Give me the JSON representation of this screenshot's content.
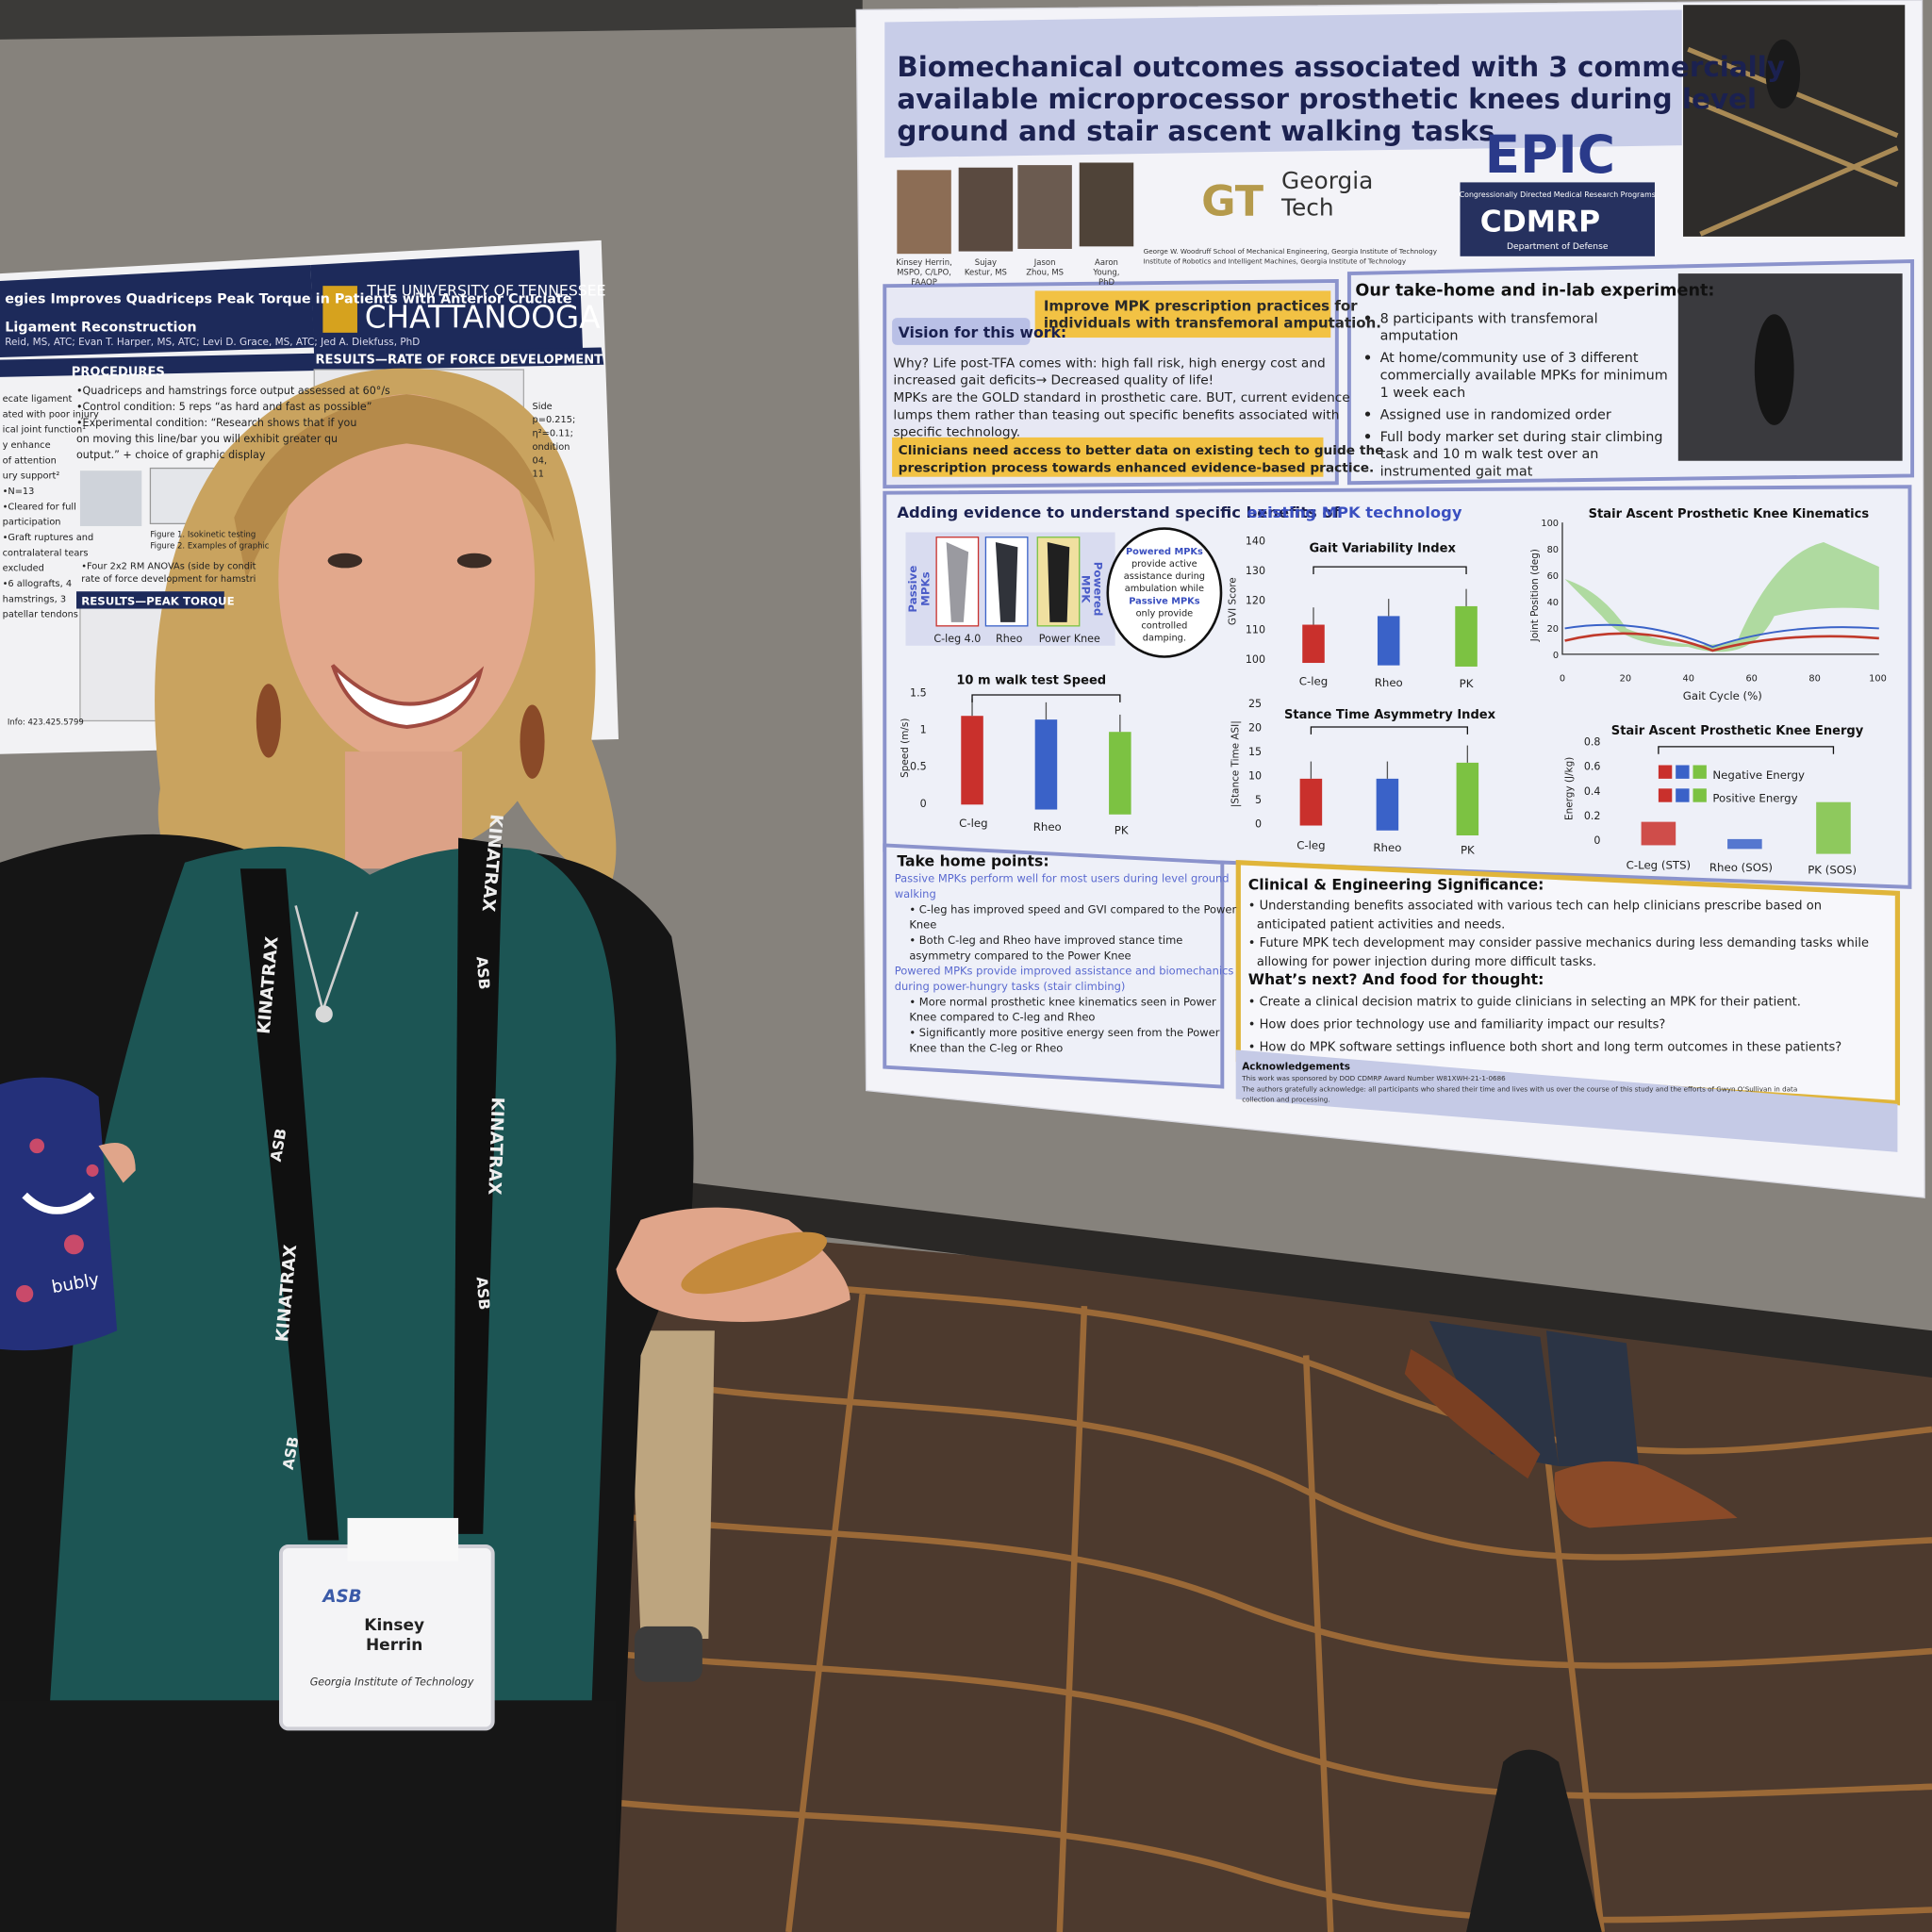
{
  "left_poster": {
    "title": [
      "egies Improves Quadriceps Peak Torque in Patients with Anterior Cruciate",
      "Ligament Reconstruction"
    ],
    "authors": "Reid, MS, ATC; Evan T. Harper, MS, ATC; Levi D. Grace, MS, ATC; Jed A. Diekfuss, PhD",
    "university": [
      "THE UNIVERSITY OF TENNESSEE",
      "CHATTANOOGA"
    ],
    "sections": [
      "PROCEDURES",
      "RESULTS—RATE OF FORCE DEVELOPMENT",
      "RESULTS—PEAK TORQUE"
    ],
    "procedures": [
      "•Quadriceps and hamstrings force output assessed at 60°/s",
      "•Control condition: 5 reps “as hard and fast as possible”",
      "•Experimental condition: “Research shows that if you",
      "on moving this line/bar you will exhibit greater qu",
      "output.” + choice of graphic display"
    ],
    "left_column": [
      "ecate ligament",
      "ated with poor injury",
      "ical joint function¹",
      "y enhance",
      "of attention",
      "ury support²",
      "•N=13",
      "•Cleared for full",
      "participation",
      "•Graft ruptures and",
      "contralateral tears",
      "excluded",
      "•6 allografts, 4",
      "hamstrings, 3",
      "patellar tendons"
    ],
    "figure_captions": [
      "Figure 1. Isokinetic testing",
      "Figure 2. Examples of graphic"
    ],
    "anova": [
      "•Four 2x2 RM ANOVAs (side by condit",
      "rate of force development for hamstri"
    ],
    "stats": [
      "Side",
      "p=0.215;",
      "η²=0.11;",
      "ondition",
      "04,",
      "11"
    ],
    "contact": "Info: 423.425.5799"
  },
  "right_poster": {
    "title": [
      "Biomechanical outcomes associated with 3 commercially",
      "available microprocessor prosthetic knees during level",
      "ground and stair ascent walking tasks"
    ],
    "authors": [
      [
        "Kinsey Herrin,",
        "MSPO, C/LPO,",
        "FAAOP"
      ],
      [
        "Sujay",
        "Kestur, MS"
      ],
      [
        "Jason",
        "Zhou, MS"
      ],
      [
        "Aaron",
        "Young,",
        "PhD"
      ]
    ],
    "georgia_tech": [
      "Georgia",
      "Tech"
    ],
    "gt_mark": "GT",
    "affiliations": [
      "George W. Woodruff School of Mechanical Engineering, Georgia Institute of Technology",
      "Institute of Robotics and Intelligent Machines, Georgia Institute of Technology"
    ],
    "epic": "EPIC",
    "cdmrp_tagline": "Congressionally Directed Medical Research Programs",
    "cdmrp": "CDMRP",
    "dod": "Department of Defense",
    "vision_label": "Vision for this work:",
    "vision_goal": [
      "Improve MPK prescription practices for",
      "individuals with transfemoral amputation."
    ],
    "vision_body": [
      "Why? Life post-TFA comes with: high fall risk, high energy cost and",
      "increased gait deficits→ Decreased quality of life!",
      "MPKs are the GOLD standard in prosthetic care. BUT, current evidence",
      "lumps them rather than teasing out specific benefits associated with",
      "specific technology."
    ],
    "vision_callout": [
      "Clinicians need access to better data on existing tech to guide the",
      "prescription process towards enhanced evidence-based practice."
    ],
    "experiment_heading": "Our take-home and in-lab experiment:",
    "experiment_bullets": [
      [
        "8 participants with transfemoral",
        "amputation"
      ],
      [
        "At home/community use of 3 different",
        "commercially available MPKs for minimum",
        "1 week each"
      ],
      [
        "Assigned use in randomized order"
      ],
      [
        "Full body marker set during stair climbing",
        "task and 10 m walk test over an",
        "instrumented gait mat"
      ]
    ],
    "evidence_heading": "Adding evidence to understand specific benefits of",
    "evidence_highlight": "existing MPK technology",
    "passive_label": [
      "Passive",
      "MPKs"
    ],
    "powered_label": [
      "Powered",
      "MPK"
    ],
    "devices": [
      "C-leg 4.0",
      "Rheo",
      "Power Knee"
    ],
    "bubble": [
      "Powered MPKs",
      "provide active",
      "assistance during",
      "ambulation while",
      "Passive MPKs",
      "only provide",
      "controlled",
      "damping."
    ],
    "speed_chart": {
      "title": "10 m walk test Speed",
      "ylabel": "Speed (m/s)",
      "yticks": [
        "1.5",
        "1",
        "0.5",
        "0"
      ],
      "categories": [
        "C-leg",
        "Rheo",
        "PK"
      ]
    },
    "gvi_chart": {
      "title": "Gait Variability Index",
      "ylabel": "GVI Score",
      "yticks": [
        "140",
        "130",
        "120",
        "110",
        "100"
      ],
      "categories": [
        "C-leg",
        "Rheo",
        "PK"
      ]
    },
    "asi_chart": {
      "title": "Stance Time Asymmetry Index",
      "ylabel": "|Stance Time ASI|",
      "yticks": [
        "25",
        "20",
        "15",
        "10",
        "5",
        "0"
      ],
      "categories": [
        "C-leg",
        "Rheo",
        "PK"
      ]
    },
    "kinematics_chart": {
      "title": "Stair Ascent Prosthetic Knee Kinematics",
      "ylabel": "Joint Position (deg)",
      "yticks": [
        "100",
        "80",
        "60",
        "40",
        "20",
        "0"
      ],
      "xticks": [
        "0",
        "20",
        "40",
        "60",
        "80",
        "100"
      ],
      "xlabel": "Gait Cycle (%)"
    },
    "energy_chart": {
      "title": "Stair Ascent Prosthetic Knee Energy",
      "ylabel": "Energy (J/kg)",
      "yticks": [
        "0.8",
        "0.6",
        "0.4",
        "0.2",
        "0"
      ],
      "legend": [
        "Negative Energy",
        "Positive Energy"
      ],
      "categories": [
        "C-Leg (STS)",
        "Rheo (SOS)",
        "PK (SOS)"
      ]
    },
    "takehome_heading": "Take home points:",
    "takehome_lines": [
      "Passive MPKs perform well for most users during level ground",
      "walking",
      "• C-leg has improved speed and GVI compared to the Power",
      "Knee",
      "• Both C-leg and Rheo have improved stance time",
      "asymmetry compared to the Power Knee",
      "Powered MPKs provide improved assistance and biomechanics",
      "during power-hungry tasks (stair climbing)",
      "• More normal prosthetic knee kinematics seen in Power",
      "Knee compared to C-leg and Rheo",
      "• Significantly more positive energy seen from the Power",
      "Knee than the C-leg or Rheo"
    ],
    "clinical_heading": "Clinical & Engineering Significance:",
    "clinical_lines": [
      "• Understanding benefits associated with various tech can help clinicians prescribe based on",
      "anticipated patient activities and needs.",
      "• Future MPK tech development may consider passive mechanics during less demanding tasks while",
      "allowing for power injection during more difficult tasks."
    ],
    "next_heading": "What’s next? And food for thought:",
    "next_lines": [
      "• Create a clinical decision matrix to guide clinicians in selecting an MPK for their patient.",
      "• How does prior technology use and familiarity impact our results?",
      "• How do MPK software settings influence both short and long term outcomes in these patients?"
    ],
    "ack_heading": "Acknowledgements",
    "ack_lines": [
      "This work was sponsored by DOD CDMRP Award Number W81XWH-21-1-0686",
      "The authors gratefully acknowledge: all participants who shared their time and lives with us over the course of this study and the efforts of Gwyn O’Sullivan in data",
      "collection and processing."
    ]
  },
  "badge": {
    "org": "ASB",
    "first_name": "Kinsey",
    "last_name": "Herrin",
    "affiliation": "Georgia Institute of Technology"
  },
  "lanyard": {
    "brand": "KINATRAX",
    "org": "ASB"
  },
  "can": "bubly"
}
